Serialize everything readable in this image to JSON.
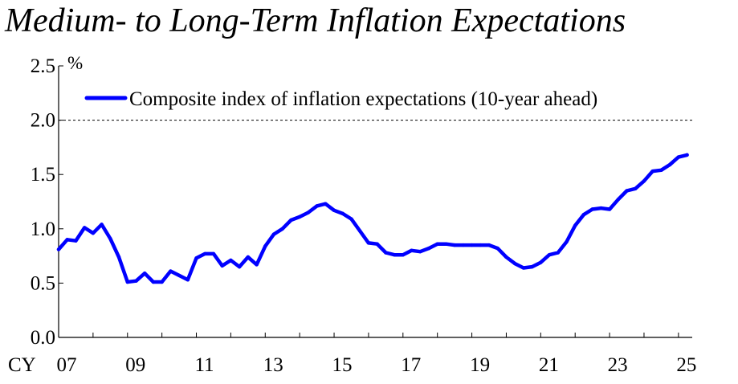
{
  "title": "Medium- to Long-Term Inflation Expectations",
  "chart_data": {
    "type": "line",
    "title": "Medium- to Long-Term Inflation Expectations",
    "ylabel": "%",
    "xlabel_prefix": "CY",
    "ylim": [
      0.0,
      2.5
    ],
    "yticks": [
      "0.0",
      "0.5",
      "1.0",
      "1.5",
      "2.0",
      "2.5"
    ],
    "xlim": [
      2007,
      2025.25
    ],
    "xticks": [
      {
        "year": 2007,
        "label": "07"
      },
      {
        "year": 2009,
        "label": "09"
      },
      {
        "year": 2011,
        "label": "11"
      },
      {
        "year": 2013,
        "label": "13"
      },
      {
        "year": 2015,
        "label": "15"
      },
      {
        "year": 2017,
        "label": "17"
      },
      {
        "year": 2019,
        "label": "19"
      },
      {
        "year": 2021,
        "label": "21"
      },
      {
        "year": 2023,
        "label": "23"
      },
      {
        "year": 2025,
        "label": "25"
      }
    ],
    "reference_line": {
      "value": 2.0,
      "style": "dashed"
    },
    "legend_position": "top-left",
    "series": [
      {
        "name": "Composite index of inflation expectations (10-year ahead)",
        "color": "#0000ff",
        "x": [
          2007.0,
          2007.25,
          2007.5,
          2007.75,
          2008.0,
          2008.25,
          2008.5,
          2008.75,
          2009.0,
          2009.25,
          2009.5,
          2009.75,
          2010.0,
          2010.25,
          2010.5,
          2010.75,
          2011.0,
          2011.25,
          2011.5,
          2011.75,
          2012.0,
          2012.25,
          2012.5,
          2012.75,
          2013.0,
          2013.25,
          2013.5,
          2013.75,
          2014.0,
          2014.25,
          2014.5,
          2014.75,
          2015.0,
          2015.25,
          2015.5,
          2015.75,
          2016.0,
          2016.25,
          2016.5,
          2016.75,
          2017.0,
          2017.25,
          2017.5,
          2017.75,
          2018.0,
          2018.25,
          2018.5,
          2018.75,
          2019.0,
          2019.25,
          2019.5,
          2019.75,
          2020.0,
          2020.25,
          2020.5,
          2020.75,
          2021.0,
          2021.25,
          2021.5,
          2021.75,
          2022.0,
          2022.25,
          2022.5,
          2022.75,
          2023.0,
          2023.25,
          2023.5,
          2023.75,
          2024.0,
          2024.25,
          2024.5,
          2024.75,
          2025.0,
          2025.25
        ],
        "values": [
          0.81,
          0.9,
          0.89,
          1.01,
          0.96,
          1.04,
          0.91,
          0.74,
          0.51,
          0.52,
          0.59,
          0.51,
          0.51,
          0.61,
          0.57,
          0.53,
          0.73,
          0.77,
          0.77,
          0.66,
          0.71,
          0.65,
          0.74,
          0.67,
          0.84,
          0.95,
          1.0,
          1.08,
          1.11,
          1.15,
          1.21,
          1.23,
          1.17,
          1.14,
          1.09,
          0.98,
          0.87,
          0.86,
          0.78,
          0.76,
          0.76,
          0.8,
          0.79,
          0.82,
          0.86,
          0.86,
          0.85,
          0.85,
          0.85,
          0.85,
          0.85,
          0.82,
          0.74,
          0.68,
          0.64,
          0.65,
          0.69,
          0.76,
          0.78,
          0.88,
          1.03,
          1.13,
          1.18,
          1.19,
          1.18,
          1.27,
          1.35,
          1.37,
          1.44,
          1.53,
          1.54,
          1.59,
          1.66,
          1.68
        ]
      }
    ]
  }
}
